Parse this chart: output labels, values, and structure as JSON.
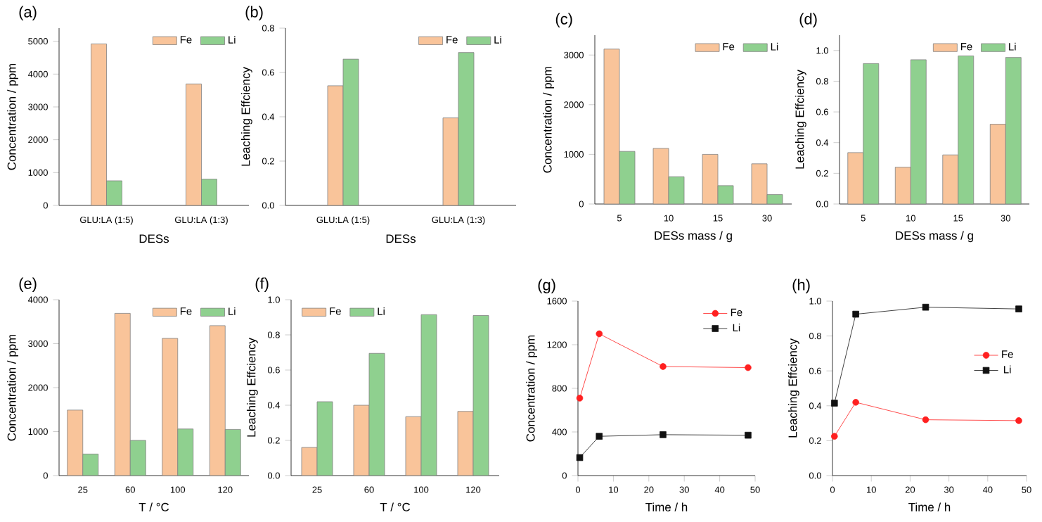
{
  "chart_data": [
    {
      "type": "bar",
      "title": "(a)",
      "xlabel": "DESs",
      "ylabel": "Concentration / ppm",
      "categories": [
        "GLU:LA (1:5)",
        "GLU:LA (1:3)"
      ],
      "ylim": [
        0,
        5400
      ],
      "yticks": [
        0,
        1000,
        2000,
        3000,
        4000,
        5000
      ],
      "legend": "top right",
      "series": [
        {
          "name": "Fe",
          "color": "#f9c49a",
          "values": [
            4920,
            3700
          ]
        },
        {
          "name": "Li",
          "color": "#8fd08f",
          "values": [
            750,
            800
          ]
        }
      ]
    },
    {
      "type": "bar",
      "title": "(b)",
      "xlabel": "DESs",
      "ylabel": "Leaching Effciency",
      "categories": [
        "GLU:LA (1:5)",
        "GLU:LA (1:3)"
      ],
      "ylim": [
        0,
        0.8
      ],
      "yticks": [
        {
          "value": 0,
          "label": "0.0"
        },
        {
          "value": 0.2,
          "label": "0.2"
        },
        {
          "value": 0.4,
          "label": "0.4"
        },
        {
          "value": 0.6,
          "label": "0.6"
        },
        {
          "value": 0.8,
          "label": "0.8"
        }
      ],
      "legend": "top right",
      "series": [
        {
          "name": "Fe",
          "color": "#f9c49a",
          "values": [
            0.54,
            0.395
          ]
        },
        {
          "name": "Li",
          "color": "#8fd08f",
          "values": [
            0.66,
            0.69
          ]
        }
      ]
    },
    {
      "type": "bar",
      "title": "(c)",
      "xlabel": "DESs mass / g",
      "ylabel": "Concentration / ppm",
      "categories": [
        "5",
        "10",
        "15",
        "30"
      ],
      "ylim": [
        0,
        3400
      ],
      "yticks": [
        0,
        1000,
        2000,
        3000
      ],
      "legend": "top right",
      "series": [
        {
          "name": "Fe",
          "color": "#f9c49a",
          "values": [
            3120,
            1120,
            1000,
            810
          ]
        },
        {
          "name": "Li",
          "color": "#8fd08f",
          "values": [
            1060,
            550,
            370,
            190
          ]
        }
      ]
    },
    {
      "type": "bar",
      "title": "(d)",
      "xlabel": "DESs mass / g",
      "ylabel": "Leaching Effciency",
      "categories": [
        "5",
        "10",
        "15",
        "30"
      ],
      "ylim": [
        0,
        1.1
      ],
      "yticks": [
        {
          "value": 0,
          "label": "0.0"
        },
        {
          "value": 0.2,
          "label": "0.2"
        },
        {
          "value": 0.4,
          "label": "0.4"
        },
        {
          "value": 0.6,
          "label": "0.6"
        },
        {
          "value": 0.8,
          "label": "0.8"
        },
        {
          "value": 1.0,
          "label": "1.0"
        }
      ],
      "legend": "top right",
      "series": [
        {
          "name": "Fe",
          "color": "#f9c49a",
          "values": [
            0.335,
            0.24,
            0.32,
            0.52
          ]
        },
        {
          "name": "Li",
          "color": "#8fd08f",
          "values": [
            0.915,
            0.94,
            0.965,
            0.955
          ]
        }
      ]
    },
    {
      "type": "bar",
      "title": "(e)",
      "xlabel": "T / °C",
      "ylabel": "Concentration / ppm",
      "categories": [
        "25",
        "60",
        "100",
        "120"
      ],
      "ylim": [
        0,
        4000
      ],
      "yticks": [
        0,
        1000,
        2000,
        3000,
        4000
      ],
      "legend": "top right",
      "series": [
        {
          "name": "Fe",
          "color": "#f9c49a",
          "values": [
            1490,
            3690,
            3120,
            3410
          ]
        },
        {
          "name": "Li",
          "color": "#8fd08f",
          "values": [
            490,
            800,
            1060,
            1050
          ]
        }
      ]
    },
    {
      "type": "bar",
      "title": "(f)",
      "xlabel": "T / °C",
      "ylabel": "Leaching Effciency",
      "categories": [
        "25",
        "60",
        "100",
        "120"
      ],
      "ylim": [
        0,
        1.0
      ],
      "yticks": [
        {
          "value": 0,
          "label": "0.0"
        },
        {
          "value": 0.2,
          "label": "0.2"
        },
        {
          "value": 0.4,
          "label": "0.4"
        },
        {
          "value": 0.6,
          "label": "0.6"
        },
        {
          "value": 0.8,
          "label": "0.8"
        },
        {
          "value": 1.0,
          "label": "1.0"
        }
      ],
      "legend": "top left",
      "series": [
        {
          "name": "Fe",
          "color": "#f9c49a",
          "values": [
            0.16,
            0.4,
            0.335,
            0.365
          ]
        },
        {
          "name": "Li",
          "color": "#8fd08f",
          "values": [
            0.42,
            0.695,
            0.915,
            0.91
          ]
        }
      ]
    },
    {
      "type": "line",
      "title": "(g)",
      "xlabel": "Time / h",
      "ylabel": "Concentration / ppm",
      "x": [
        0.5,
        6,
        24,
        48
      ],
      "xlim": [
        0,
        50
      ],
      "xticks": [
        0,
        10,
        20,
        30,
        40,
        50
      ],
      "ylim": [
        0,
        1600
      ],
      "yticks": [
        0,
        400,
        800,
        1200,
        1600
      ],
      "legend": "top right",
      "series": [
        {
          "name": "Fe",
          "color": "#ff2020",
          "marker": "circle",
          "values": [
            710,
            1300,
            1000,
            990
          ]
        },
        {
          "name": "Li",
          "color": "#111111",
          "marker": "square",
          "values": [
            165,
            360,
            375,
            370
          ]
        }
      ]
    },
    {
      "type": "line",
      "title": "(h)",
      "xlabel": "Time / h",
      "ylabel": "Leaching Effciency",
      "x": [
        0.5,
        6,
        24,
        48
      ],
      "xlim": [
        0,
        50
      ],
      "xticks": [
        0,
        10,
        20,
        30,
        40,
        50
      ],
      "ylim": [
        0,
        1.0
      ],
      "yticks": [
        {
          "value": 0,
          "label": "0.0"
        },
        {
          "value": 0.2,
          "label": "0.2"
        },
        {
          "value": 0.4,
          "label": "0.4"
        },
        {
          "value": 0.6,
          "label": "0.6"
        },
        {
          "value": 0.8,
          "label": "0.8"
        },
        {
          "value": 1.0,
          "label": "1.0"
        }
      ],
      "legend": "right",
      "series": [
        {
          "name": "Fe",
          "color": "#ff2020",
          "marker": "circle",
          "values": [
            0.225,
            0.42,
            0.32,
            0.315
          ]
        },
        {
          "name": "Li",
          "color": "#111111",
          "marker": "square",
          "values": [
            0.415,
            0.925,
            0.965,
            0.955
          ]
        }
      ]
    }
  ]
}
